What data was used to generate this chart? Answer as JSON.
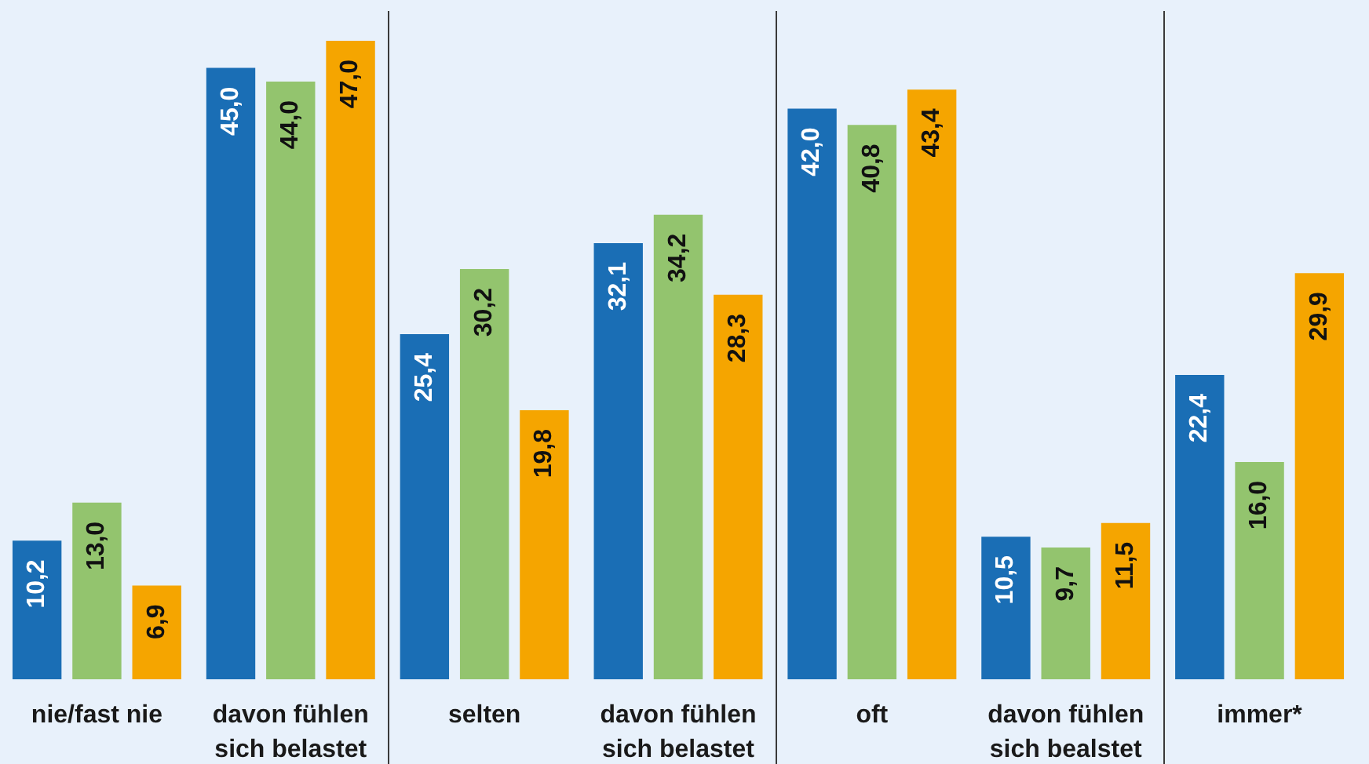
{
  "chart_data": {
    "type": "bar",
    "categories": [
      "nie/fast nie",
      "davon fühlen sich belastet",
      "selten",
      "davon fühlen sich belastet",
      "oft",
      "davon fühlen sich bealstet",
      "immer*"
    ],
    "series": [
      {
        "color": "#1a6eb5",
        "values": [
          10.2,
          45.0,
          25.4,
          32.1,
          42.0,
          10.5,
          22.4
        ],
        "value_labels": [
          "10,2",
          "45,0",
          "25,4",
          "32,1",
          "42,0",
          "10,5",
          "22,4"
        ]
      },
      {
        "color": "#93c46e",
        "values": [
          13.0,
          44.0,
          30.2,
          34.2,
          40.8,
          9.7,
          16.0
        ],
        "value_labels": [
          "13,0",
          "44,0",
          "30,2",
          "34,2",
          "40,8",
          "9,7",
          "16,0"
        ]
      },
      {
        "color": "#f5a500",
        "values": [
          6.9,
          47.0,
          19.8,
          28.3,
          43.4,
          11.5,
          29.9
        ],
        "value_labels": [
          "6,9",
          "47,0",
          "19,8",
          "28,3",
          "43,4",
          "11,5",
          "29,9"
        ]
      }
    ],
    "tick_labels": "x",
    "grid": false,
    "legend": false
  }
}
